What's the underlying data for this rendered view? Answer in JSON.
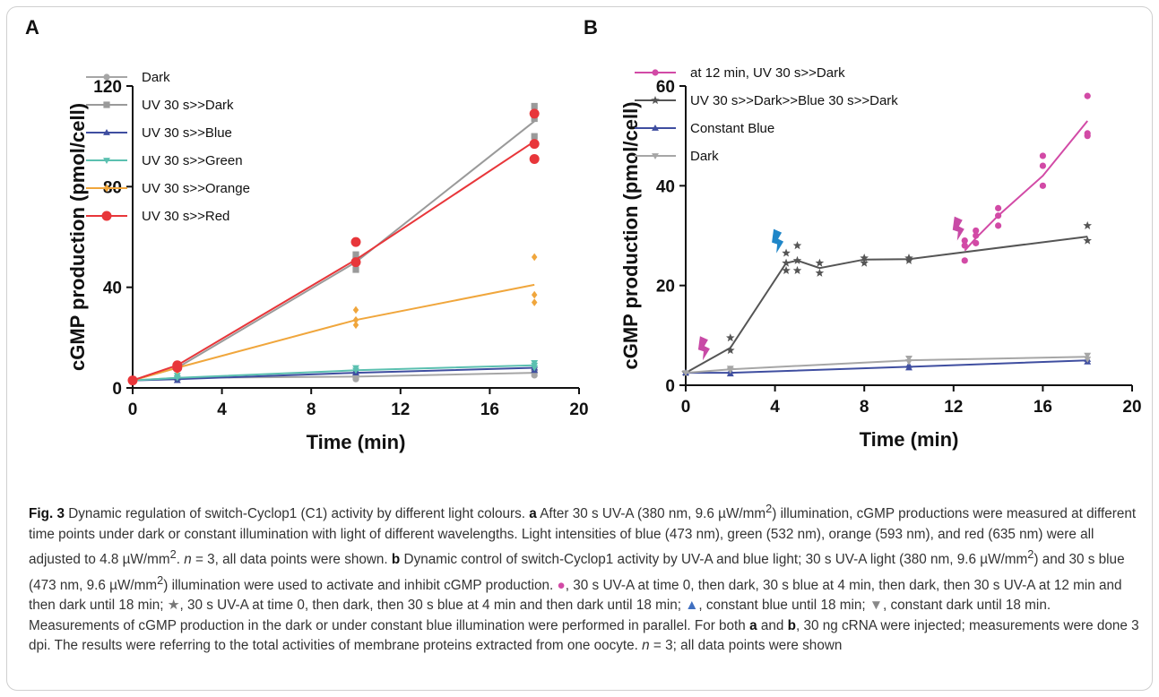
{
  "panels": [
    {
      "letter": "A"
    },
    {
      "letter": "B"
    }
  ],
  "chart_data": [
    {
      "type": "line",
      "panel": "A",
      "xlabel": "Time (min)",
      "ylabel": "cGMP production (pmol/cell)",
      "xlim": [
        0,
        20
      ],
      "ylim": [
        0,
        120
      ],
      "xticks": [
        "0",
        "4",
        "8",
        "12",
        "16",
        "20"
      ],
      "yticks": [
        "0",
        "40",
        "80",
        "120"
      ],
      "grid": false,
      "legend_position": "top-left",
      "series": [
        {
          "name": "Dark",
          "color": "#a6a6a6",
          "marker": "circle",
          "x": [
            0,
            2,
            10,
            18
          ],
          "y": [
            3,
            4,
            4.5,
            6
          ],
          "points": [
            [
              0,
              3
            ],
            [
              0,
              2.5
            ],
            [
              2,
              3.5
            ],
            [
              2,
              4.5
            ],
            [
              10,
              3.5
            ],
            [
              10,
              4
            ],
            [
              10,
              5
            ],
            [
              18,
              5
            ],
            [
              18,
              6
            ],
            [
              18,
              7
            ]
          ]
        },
        {
          "name": "UV 30 s>>Dark",
          "color": "#9a9a9a",
          "marker": "square",
          "x": [
            0,
            2,
            10,
            18
          ],
          "y": [
            3,
            8,
            50,
            106
          ],
          "points": [
            [
              0,
              3
            ],
            [
              2,
              8
            ],
            [
              2,
              9
            ],
            [
              10,
              47
            ],
            [
              10,
              51
            ],
            [
              10,
              53
            ],
            [
              18,
              100
            ],
            [
              18,
              107
            ],
            [
              18,
              112
            ]
          ]
        },
        {
          "name": "UV 30 s>>Blue",
          "color": "#3f4ea0",
          "marker": "triangle-up",
          "x": [
            0,
            2,
            10,
            18
          ],
          "y": [
            3,
            3.5,
            6,
            8
          ],
          "points": [
            [
              0,
              3
            ],
            [
              2,
              3
            ],
            [
              2,
              4
            ],
            [
              10,
              6
            ],
            [
              10,
              7
            ],
            [
              18,
              7
            ],
            [
              18,
              8
            ],
            [
              18,
              9
            ]
          ]
        },
        {
          "name": "UV 30 s>>Green",
          "color": "#5bc0b0",
          "marker": "triangle-down",
          "x": [
            0,
            2,
            10,
            18
          ],
          "y": [
            3,
            4,
            7,
            9
          ],
          "points": [
            [
              0,
              3
            ],
            [
              2,
              4
            ],
            [
              2,
              5
            ],
            [
              10,
              7
            ],
            [
              10,
              8
            ],
            [
              18,
              8
            ],
            [
              18,
              9
            ],
            [
              18,
              10
            ]
          ]
        },
        {
          "name": "UV 30 s>>Orange",
          "color": "#f0a63c",
          "marker": "diamond",
          "x": [
            0,
            2,
            10,
            18
          ],
          "y": [
            3,
            8,
            27,
            41
          ],
          "points": [
            [
              0,
              3
            ],
            [
              2,
              7
            ],
            [
              2,
              8
            ],
            [
              10,
              25
            ],
            [
              10,
              27
            ],
            [
              10,
              31
            ],
            [
              18,
              34
            ],
            [
              18,
              37
            ],
            [
              18,
              52
            ]
          ]
        },
        {
          "name": "UV 30 s>>Red",
          "color": "#e8363a",
          "marker": "circle",
          "x": [
            0,
            2,
            10,
            18
          ],
          "y": [
            3,
            9,
            51,
            98
          ],
          "points": [
            [
              0,
              3
            ],
            [
              2,
              8
            ],
            [
              2,
              9
            ],
            [
              10,
              50
            ],
            [
              10,
              58
            ],
            [
              18,
              91
            ],
            [
              18,
              97
            ],
            [
              18,
              109
            ]
          ]
        }
      ]
    },
    {
      "type": "line",
      "panel": "B",
      "xlabel": "Time (min)",
      "ylabel": "cGMP production (pmol/cell)",
      "xlim": [
        0,
        20
      ],
      "ylim": [
        0,
        60
      ],
      "xticks": [
        "0",
        "4",
        "8",
        "12",
        "16",
        "20"
      ],
      "yticks": [
        "0",
        "20",
        "40",
        "60"
      ],
      "grid": false,
      "legend_position": "top-left",
      "series": [
        {
          "name": "at 12 min, UV 30 s>>Dark",
          "color": "#d24aa6",
          "marker": "circle",
          "x": [
            12.5,
            13,
            14,
            16,
            18
          ],
          "y": [
            27,
            29.5,
            34,
            42,
            53
          ],
          "points": [
            [
              12.5,
              25
            ],
            [
              12.5,
              28
            ],
            [
              12.5,
              29
            ],
            [
              13,
              28.5
            ],
            [
              13,
              30
            ],
            [
              13,
              31
            ],
            [
              14,
              32
            ],
            [
              14,
              34
            ],
            [
              14,
              35.5
            ],
            [
              16,
              40
            ],
            [
              16,
              44
            ],
            [
              16,
              46
            ],
            [
              18,
              50
            ],
            [
              18,
              50.5
            ],
            [
              18,
              58
            ]
          ]
        },
        {
          "name": "UV 30 s>>Dark>>Blue 30 s>>Dark",
          "color": "#555555",
          "marker": "star",
          "x": [
            0,
            2,
            4.5,
            5,
            6,
            8,
            10,
            18
          ],
          "y": [
            2.5,
            7.5,
            24.5,
            25,
            23.5,
            25.2,
            25.3,
            29.8
          ],
          "points": [
            [
              0,
              2.5
            ],
            [
              2,
              7
            ],
            [
              2,
              9.5
            ],
            [
              4.5,
              23
            ],
            [
              4.5,
              24.5
            ],
            [
              4.5,
              26.5
            ],
            [
              5,
              23
            ],
            [
              5,
              25
            ],
            [
              5,
              28
            ],
            [
              6,
              22.5
            ],
            [
              6,
              24.5
            ],
            [
              8,
              24.5
            ],
            [
              8,
              25.5
            ],
            [
              10,
              25
            ],
            [
              10,
              25.5
            ],
            [
              18,
              29
            ],
            [
              18,
              32
            ]
          ]
        },
        {
          "name": "Constant Blue",
          "color": "#3f4ea0",
          "marker": "triangle-up",
          "x": [
            0,
            2,
            10,
            18
          ],
          "y": [
            2.5,
            2.5,
            3.7,
            5
          ],
          "points": [
            [
              0,
              2.5
            ],
            [
              2,
              2.3
            ],
            [
              2,
              2.8
            ],
            [
              10,
              3.5
            ],
            [
              10,
              4
            ],
            [
              18,
              4.7
            ],
            [
              18,
              5.2
            ]
          ]
        },
        {
          "name": "Dark",
          "color": "#a6a6a6",
          "marker": "triangle-down",
          "x": [
            0,
            2,
            10,
            18
          ],
          "y": [
            2.5,
            3.2,
            5,
            5.7
          ],
          "points": [
            [
              0,
              2.5
            ],
            [
              2,
              3
            ],
            [
              2,
              3.4
            ],
            [
              10,
              4.7
            ],
            [
              10,
              5.4
            ],
            [
              18,
              5.2
            ],
            [
              18,
              6
            ]
          ]
        }
      ],
      "annotations": [
        {
          "kind": "bolt",
          "color": "#c84aa6",
          "x": 0.8,
          "y": 7.5
        },
        {
          "kind": "bolt",
          "color": "#1f86c8",
          "x": 4.1,
          "y": 29
        },
        {
          "kind": "bolt",
          "color": "#c84aa6",
          "x": 12.2,
          "y": 31.5
        }
      ]
    }
  ],
  "caption": {
    "fig_label": "Fig. 3",
    "html": " Dynamic regulation of switch-Cyclop1 (C1) activity by different light colours. <b>a</b> After 30 s UV-A (380 nm, 9.6 µW/mm<sup>2</sup>) illumination, cGMP productions were measured at different time points under dark or constant illumination with light of different wavelengths. Light intensities of blue (473 nm), green (532 nm), orange (593 nm), and red (635 nm) were all adjusted to 4.8 µW/mm<sup>2</sup>. <i>n</i> = 3, all data points were shown. <b>b</b> Dynamic control of switch-Cyclop1 activity by UV-A and blue light; 30 s UV-A light (380 nm, 9.6 µW/mm<sup>2</sup>) and 30 s blue (473 nm, 9.6 µW/mm<sup>2</sup>) illumination were used to activate and inhibit cGMP production. <span style=\"color:#d24aa6\">●</span>, 30 s UV-A at time 0, then dark, 30 s blue at 4 min, then dark, then 30 s UV-A at 12 min and then dark until 18 min; <span style=\"color:#777\">★</span>, 30 s UV-A at time 0, then dark, then 30 s blue at 4 min and then dark until 18 min; <span style=\"color:#3f6fc0\">▲</span>, constant blue until 18 min; <span style=\"color:#888\">▼</span>, constant dark until 18 min. Measurements of cGMP production in the dark or under constant blue illumination were performed in parallel. For both <b>a</b> and <b>b</b>, 30 ng cRNA were injected; measurements were done 3 dpi. The results were referring to the total activities of membrane proteins extracted from one oocyte. <i>n</i> = 3; all data points were shown"
  }
}
